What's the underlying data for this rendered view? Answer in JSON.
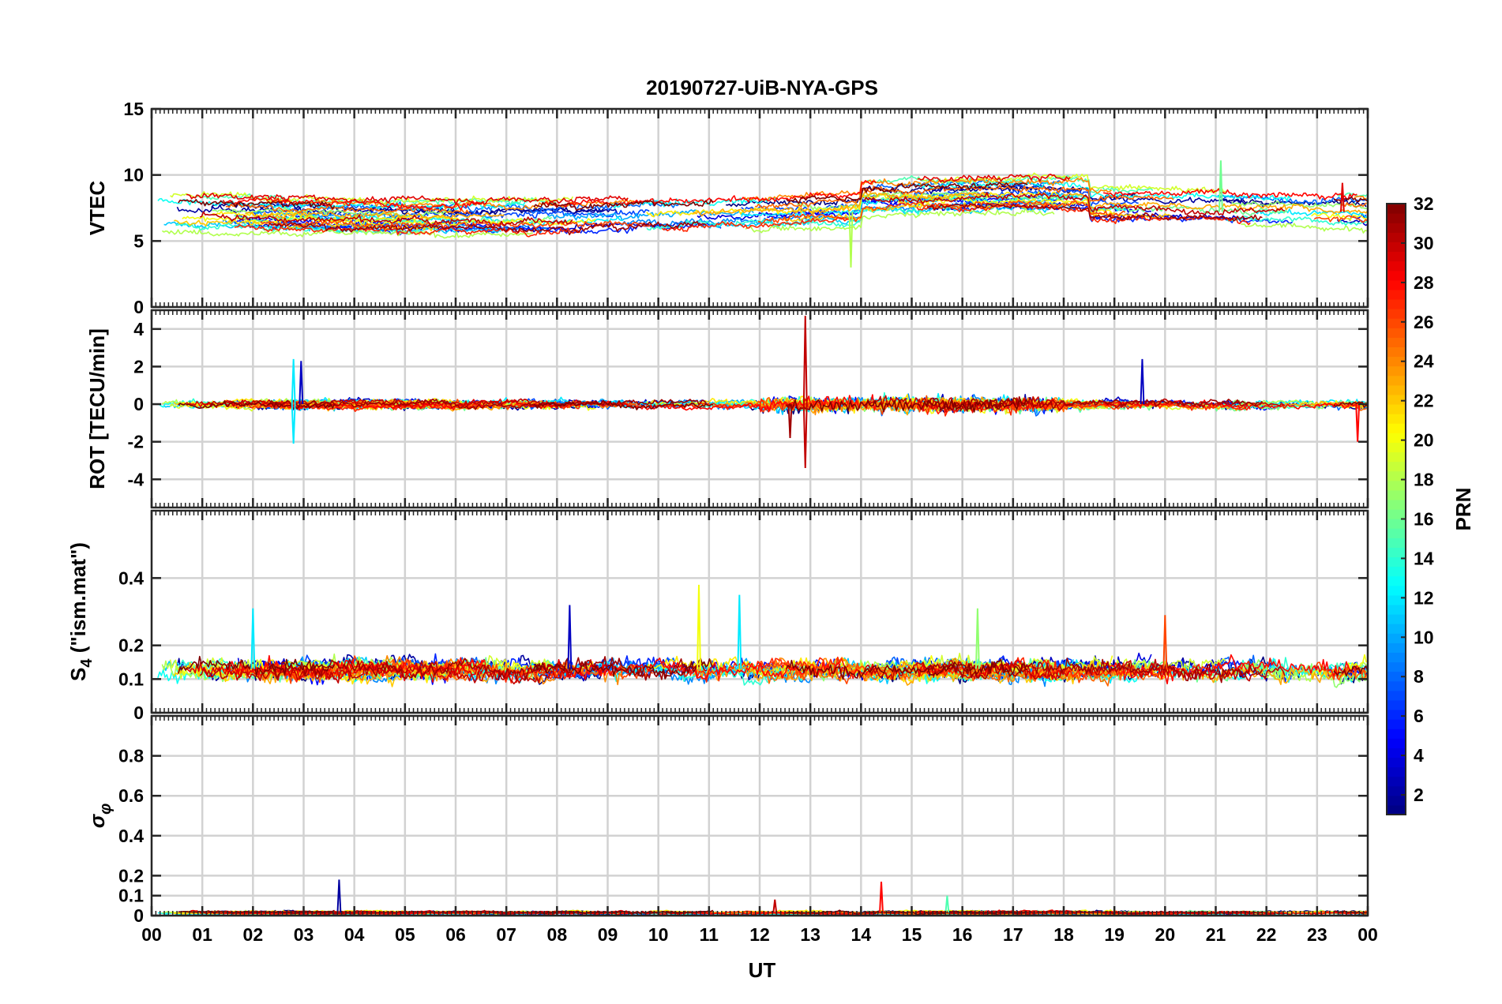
{
  "chart_data": {
    "type": "line",
    "title": "20190727-UiB-NYA-GPS",
    "xlabel": "UT",
    "x_ticks": [
      "00",
      "01",
      "02",
      "03",
      "04",
      "05",
      "06",
      "07",
      "08",
      "09",
      "10",
      "11",
      "12",
      "13",
      "14",
      "15",
      "16",
      "17",
      "18",
      "19",
      "20",
      "21",
      "22",
      "23",
      "00"
    ],
    "xlim_hours": [
      0,
      24
    ],
    "grid": true,
    "panels": [
      {
        "id": "vtec",
        "ylabel": "VTEC",
        "ylim": [
          0,
          15
        ],
        "y_ticks": [
          0,
          5,
          10,
          15
        ],
        "baseline": 7.2,
        "spread": 1.6,
        "noise": 0.25,
        "spikes": [
          {
            "hour": 13.8,
            "prn": 18,
            "value": 3.0
          },
          {
            "hour": 21.1,
            "prn": 16,
            "value": 11.1
          },
          {
            "hour": 23.5,
            "prn": 29,
            "value": 9.4
          }
        ]
      },
      {
        "id": "rot",
        "ylabel": "ROT [TECU/min]",
        "ylim": [
          -5.5,
          5
        ],
        "y_ticks": [
          -4,
          -2,
          0,
          2,
          4
        ],
        "baseline": 0,
        "spread": 0.1,
        "noise": 0.18,
        "spikes": [
          {
            "hour": 2.8,
            "prn": 12,
            "value": 2.4
          },
          {
            "hour": 2.8,
            "prn": 12,
            "value": -2.1
          },
          {
            "hour": 2.95,
            "prn": 3,
            "value": 2.3
          },
          {
            "hour": 12.9,
            "prn": 30,
            "value": 4.7
          },
          {
            "hour": 12.9,
            "prn": 30,
            "value": -3.4
          },
          {
            "hour": 12.6,
            "prn": 31,
            "value": -1.8
          },
          {
            "hour": 19.55,
            "prn": 3,
            "value": 2.4
          },
          {
            "hour": 23.8,
            "prn": 28,
            "value": -2.0
          }
        ]
      },
      {
        "id": "s4",
        "ylabel": "S4 (\"ism.mat\")",
        "ylim": [
          0,
          0.6
        ],
        "y_ticks": [
          0,
          0.1,
          0.2,
          0.4
        ],
        "baseline": 0.13,
        "spread": 0.01,
        "noise": 0.025,
        "spikes": [
          {
            "hour": 2.0,
            "prn": 12,
            "value": 0.31
          },
          {
            "hour": 8.25,
            "prn": 3,
            "value": 0.32
          },
          {
            "hour": 10.8,
            "prn": 20,
            "value": 0.38
          },
          {
            "hour": 11.6,
            "prn": 12,
            "value": 0.35
          },
          {
            "hour": 20.0,
            "prn": 26,
            "value": 0.29
          },
          {
            "hour": 16.3,
            "prn": 17,
            "value": 0.31
          }
        ]
      },
      {
        "id": "sigma",
        "ylabel": "σφ",
        "ylim": [
          0,
          1
        ],
        "y_ticks": [
          0,
          0.1,
          0.2,
          0.4,
          0.6,
          0.8
        ],
        "baseline": 0.015,
        "spread": 0.005,
        "noise": 0.006,
        "spikes": [
          {
            "hour": 3.7,
            "prn": 2,
            "value": 0.18
          },
          {
            "hour": 14.4,
            "prn": 28,
            "value": 0.17
          },
          {
            "hour": 12.3,
            "prn": 30,
            "value": 0.08
          },
          {
            "hour": 15.7,
            "prn": 15,
            "value": 0.1
          }
        ]
      }
    ],
    "colorbar": {
      "label": "PRN",
      "range": [
        1,
        32
      ],
      "ticks": [
        2,
        4,
        6,
        8,
        10,
        12,
        14,
        16,
        18,
        20,
        22,
        24,
        26,
        28,
        30,
        32
      ],
      "colormap": "jet"
    },
    "series_prns": [
      1,
      2,
      3,
      4,
      5,
      6,
      7,
      8,
      9,
      10,
      11,
      12,
      13,
      14,
      15,
      16,
      17,
      18,
      19,
      20,
      21,
      22,
      23,
      24,
      25,
      26,
      27,
      28,
      29,
      30,
      31,
      32
    ]
  },
  "colors": {
    "grid": "#d2d2d2",
    "axis": "#262626",
    "background": "#ffffff"
  }
}
